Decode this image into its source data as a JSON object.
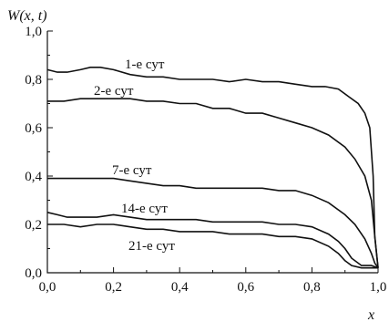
{
  "chart_data": {
    "type": "line",
    "ylabel": "W(x, t)",
    "xlabel": "x",
    "xlim": [
      0.0,
      1.0
    ],
    "ylim": [
      0.0,
      1.0
    ],
    "xticks": [
      "0,0",
      "0,2",
      "0,4",
      "0,6",
      "0,8",
      "1,0"
    ],
    "yticks": [
      "0,0",
      "0,2",
      "0,4",
      "0,6",
      "0,8",
      "1,0"
    ],
    "grid": false,
    "series": [
      {
        "name": "1-е сут",
        "x": [
          0.0,
          0.03,
          0.06,
          0.1,
          0.13,
          0.16,
          0.2,
          0.25,
          0.3,
          0.35,
          0.4,
          0.45,
          0.5,
          0.55,
          0.6,
          0.65,
          0.7,
          0.75,
          0.8,
          0.84,
          0.88,
          0.91,
          0.94,
          0.96,
          0.975,
          0.985,
          0.99,
          1.0
        ],
        "y": [
          0.84,
          0.83,
          0.83,
          0.84,
          0.85,
          0.85,
          0.84,
          0.82,
          0.81,
          0.81,
          0.8,
          0.8,
          0.8,
          0.79,
          0.8,
          0.79,
          0.79,
          0.78,
          0.77,
          0.77,
          0.76,
          0.73,
          0.7,
          0.66,
          0.6,
          0.4,
          0.15,
          0.02
        ]
      },
      {
        "name": "2-е сут",
        "x": [
          0.0,
          0.05,
          0.1,
          0.15,
          0.2,
          0.25,
          0.3,
          0.35,
          0.4,
          0.45,
          0.5,
          0.55,
          0.6,
          0.65,
          0.7,
          0.75,
          0.8,
          0.85,
          0.9,
          0.93,
          0.96,
          0.98,
          0.99,
          1.0
        ],
        "y": [
          0.71,
          0.71,
          0.72,
          0.72,
          0.72,
          0.72,
          0.71,
          0.71,
          0.7,
          0.7,
          0.68,
          0.68,
          0.66,
          0.66,
          0.64,
          0.62,
          0.6,
          0.57,
          0.52,
          0.47,
          0.4,
          0.3,
          0.15,
          0.02
        ]
      },
      {
        "name": "7-е сут",
        "x": [
          0.0,
          0.05,
          0.1,
          0.15,
          0.2,
          0.25,
          0.3,
          0.35,
          0.4,
          0.45,
          0.5,
          0.55,
          0.6,
          0.65,
          0.7,
          0.75,
          0.8,
          0.85,
          0.9,
          0.93,
          0.96,
          0.98,
          0.99,
          1.0
        ],
        "y": [
          0.39,
          0.39,
          0.39,
          0.39,
          0.39,
          0.38,
          0.37,
          0.36,
          0.36,
          0.35,
          0.35,
          0.35,
          0.35,
          0.35,
          0.34,
          0.34,
          0.32,
          0.29,
          0.24,
          0.2,
          0.14,
          0.08,
          0.04,
          0.02
        ]
      },
      {
        "name": "14-е сут",
        "x": [
          0.0,
          0.03,
          0.06,
          0.1,
          0.15,
          0.2,
          0.25,
          0.3,
          0.35,
          0.4,
          0.45,
          0.5,
          0.55,
          0.6,
          0.65,
          0.7,
          0.75,
          0.8,
          0.85,
          0.88,
          0.9,
          0.92,
          0.95,
          0.98,
          1.0
        ],
        "y": [
          0.25,
          0.24,
          0.23,
          0.23,
          0.23,
          0.24,
          0.23,
          0.22,
          0.22,
          0.22,
          0.22,
          0.21,
          0.21,
          0.21,
          0.21,
          0.2,
          0.2,
          0.19,
          0.16,
          0.13,
          0.1,
          0.06,
          0.03,
          0.03,
          0.02
        ]
      },
      {
        "name": "21-е сут",
        "x": [
          0.0,
          0.05,
          0.1,
          0.15,
          0.2,
          0.25,
          0.3,
          0.35,
          0.4,
          0.45,
          0.5,
          0.55,
          0.6,
          0.65,
          0.7,
          0.75,
          0.8,
          0.85,
          0.88,
          0.9,
          0.92,
          0.95,
          0.98,
          1.0
        ],
        "y": [
          0.2,
          0.2,
          0.19,
          0.2,
          0.2,
          0.19,
          0.18,
          0.18,
          0.17,
          0.17,
          0.17,
          0.16,
          0.16,
          0.16,
          0.15,
          0.15,
          0.14,
          0.11,
          0.08,
          0.05,
          0.03,
          0.02,
          0.02,
          0.02
        ]
      }
    ]
  }
}
